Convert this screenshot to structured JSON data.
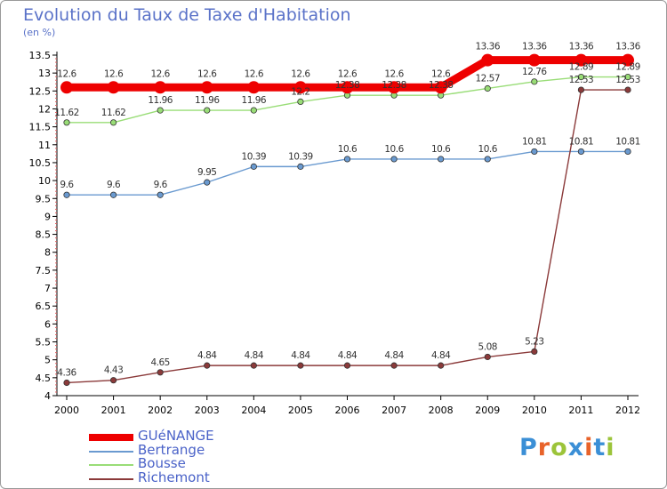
{
  "title": "Evolution du Taux de Taxe d'Habitation",
  "subtitle": "(en %)",
  "logo": {
    "text": "Proxiti",
    "letter_colors": [
      "#3b8fd6",
      "#e8632a",
      "#9cc43a",
      "#3b8fd6",
      "#e8632a",
      "#3b8fd6",
      "#9cc43a"
    ]
  },
  "chart_data": {
    "type": "line",
    "x": [
      "2000",
      "2001",
      "2002",
      "2003",
      "2004",
      "2005",
      "2006",
      "2007",
      "2008",
      "2009",
      "2010",
      "2011",
      "2012"
    ],
    "ylim": [
      4,
      13.5
    ],
    "yticks": [
      "4",
      "4.5",
      "5",
      "5.5",
      "6",
      "6.5",
      "7",
      "7.5",
      "8",
      "8.5",
      "9",
      "9.5",
      "10",
      "10.5",
      "11",
      "11.5",
      "12",
      "12.5",
      "13",
      "13.5"
    ],
    "grid": false,
    "legend_position": "bottom-left",
    "series": [
      {
        "name": "GUéNANGE",
        "color": "#ee0000",
        "emphasis": "thick",
        "values": [
          12.6,
          12.6,
          12.6,
          12.6,
          12.6,
          12.6,
          12.6,
          12.6,
          12.6,
          13.36,
          13.36,
          13.36,
          13.36
        ],
        "labels": [
          "12.6",
          "12.6",
          "12.6",
          "12.6",
          "12.6",
          "12.6",
          "12.6",
          "12.6",
          "12.6",
          "13.36",
          "13.36",
          "13.36",
          "13.36"
        ]
      },
      {
        "name": "Bertrange",
        "color": "#6a9ad0",
        "emphasis": "normal",
        "values": [
          9.6,
          9.6,
          9.6,
          9.95,
          10.39,
          10.39,
          10.6,
          10.6,
          10.6,
          10.6,
          10.81,
          10.81,
          10.81
        ],
        "labels": [
          "9.6",
          "9.6",
          "9.6",
          "9.95",
          "10.39",
          "10.39",
          "10.6",
          "10.6",
          "10.6",
          "10.6",
          "10.81",
          "10.81",
          "10.81"
        ]
      },
      {
        "name": "Bousse",
        "color": "#99dd77",
        "emphasis": "normal",
        "values": [
          11.62,
          11.62,
          11.96,
          11.96,
          11.96,
          12.2,
          12.38,
          12.38,
          12.38,
          12.57,
          12.76,
          12.89,
          12.89
        ],
        "labels": [
          "11.62",
          "11.62",
          "11.96",
          "11.96",
          "11.96",
          "12.2",
          "12.38",
          "12.38",
          "12.38",
          "12.57",
          "12.76",
          "12.89",
          "12.89"
        ]
      },
      {
        "name": "Richemont",
        "color": "#8b3a3a",
        "emphasis": "normal",
        "values": [
          4.36,
          4.43,
          4.65,
          4.84,
          4.84,
          4.84,
          4.84,
          4.84,
          4.84,
          5.08,
          5.23,
          12.53,
          12.53
        ],
        "labels": [
          "4.36",
          "4.43",
          "4.65",
          "4.84",
          "4.84",
          "4.84",
          "4.84",
          "4.84",
          "4.84",
          "5.08",
          "5.23",
          "12.53",
          "12.53"
        ]
      }
    ]
  }
}
